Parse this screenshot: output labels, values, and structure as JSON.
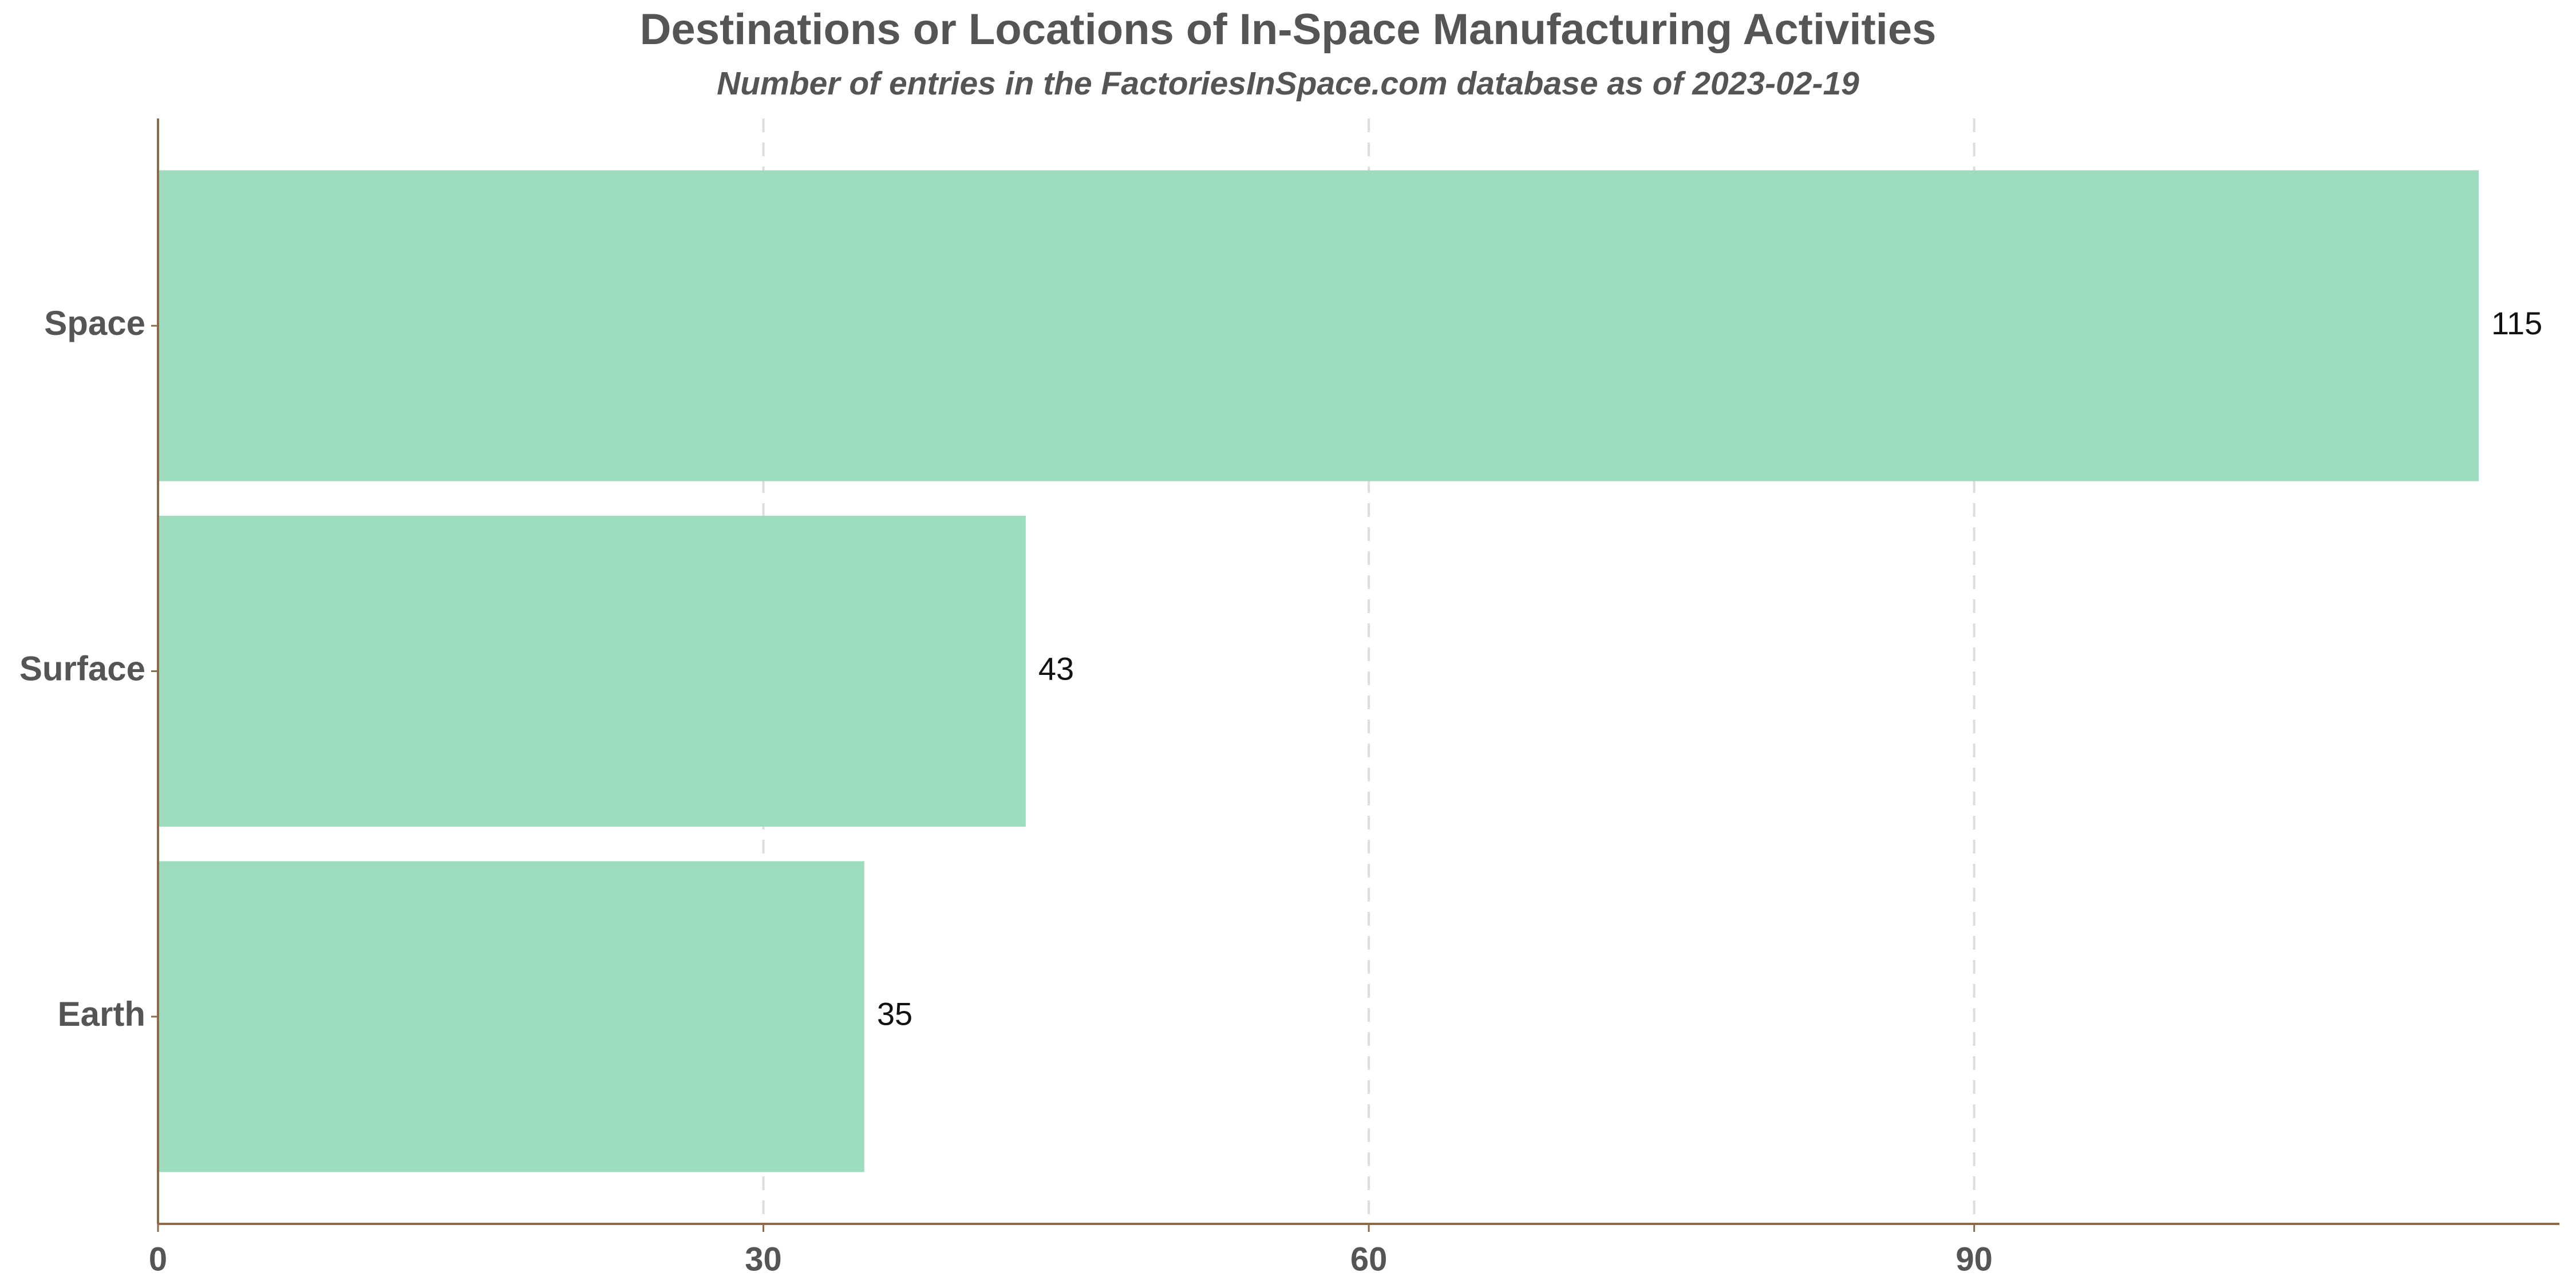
{
  "chart_data": {
    "type": "hbar",
    "title": "Destinations or Locations of In-Space Manufacturing Activities",
    "subtitle": "Number of entries in the FactoriesInSpace.com database as of 2023-02-19",
    "categories": [
      "Space",
      "Surface",
      "Earth"
    ],
    "values": [
      115,
      43,
      35
    ],
    "color": "#9ddcbd",
    "xlim": [
      0,
      119
    ],
    "xticks": [
      0,
      30,
      60,
      90
    ],
    "grid": true
  }
}
